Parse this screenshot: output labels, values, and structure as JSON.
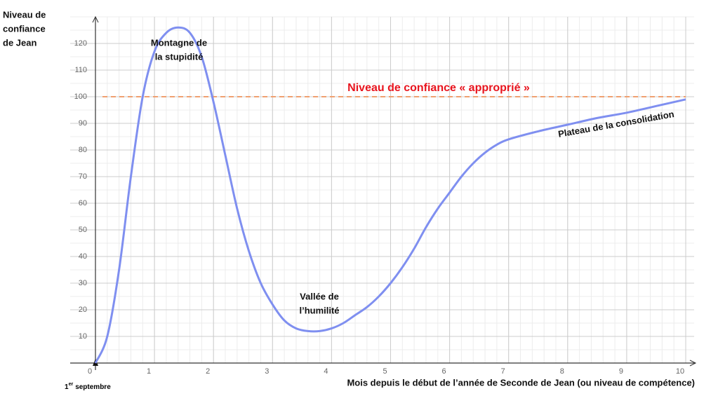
{
  "chart_data": {
    "type": "line",
    "y_label_lines": [
      "Niveau de",
      "confiance",
      "de Jean"
    ],
    "x_label": "Mois depuis le début de l’année de Seconde de Jean (ou niveau de compétence)",
    "origin_label": {
      "number": "1",
      "sup": "er",
      "rest": "septembre"
    },
    "x": [
      0,
      0.2,
      0.4,
      0.6,
      0.8,
      1.0,
      1.2,
      1.4,
      1.6,
      1.8,
      2.0,
      2.2,
      2.4,
      2.6,
      2.8,
      3.0,
      3.2,
      3.4,
      3.6,
      3.8,
      4.0,
      4.2,
      4.4,
      4.6,
      4.8,
      5.0,
      5.2,
      5.4,
      5.6,
      5.8,
      6.0,
      6.2,
      6.4,
      6.6,
      6.8,
      7.0,
      7.5,
      8.0,
      8.5,
      9.0,
      9.5,
      10
    ],
    "series": [
      {
        "color": "#7f8ff0",
        "values": [
          0,
          10,
          35,
          70,
          100,
          117,
          124,
          126,
          124,
          115,
          98,
          78,
          58,
          42,
          30,
          22,
          16,
          13,
          12,
          12,
          13,
          15,
          18,
          21,
          25,
          30,
          36,
          43,
          51,
          58,
          64,
          70,
          75,
          79,
          82,
          84,
          87,
          89.5,
          92,
          94,
          96.5,
          99
        ]
      }
    ],
    "xlim": [
      0,
      10
    ],
    "ylim": [
      0,
      130
    ],
    "xticks": [
      0,
      1,
      2,
      3,
      4,
      5,
      6,
      7,
      8,
      9,
      10
    ],
    "yticks": [
      10,
      20,
      30,
      40,
      50,
      60,
      70,
      80,
      90,
      100,
      110,
      120
    ],
    "grid": true,
    "reference_line": {
      "value": 100,
      "label": "Niveau de confiance « approprié »",
      "color": "#f0a070",
      "label_color": "#e8141e"
    },
    "annotations": [
      {
        "lines": [
          "Montagne de",
          "la stupidité"
        ]
      },
      {
        "lines": [
          "Vallée de",
          "l’humilité"
        ]
      },
      {
        "lines": [
          "Plateau de la consolidation"
        ]
      }
    ]
  }
}
